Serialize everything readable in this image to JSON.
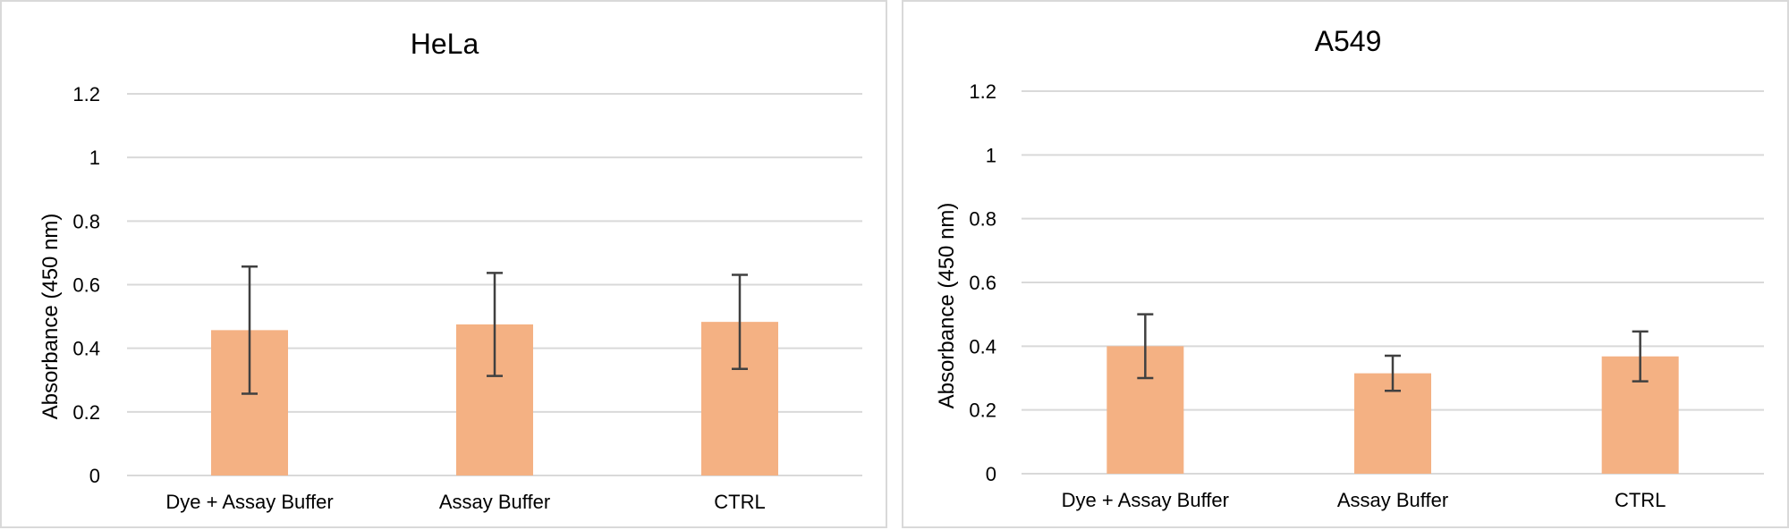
{
  "chart_data": [
    {
      "type": "bar",
      "title": "HeLa",
      "xlabel": "",
      "ylabel": "Absorbance (450 nm)",
      "ylim": [
        0,
        1.2
      ],
      "yticks": [
        "0",
        "0.2",
        "0.4",
        "0.6",
        "0.8",
        "1",
        "1.2"
      ],
      "grid": true,
      "bar_color": "#f4b183",
      "error_bar_color": "#404040",
      "categories": [
        "Dye + Assay Buffer",
        "Assay Buffer",
        "CTRL"
      ],
      "values": [
        0.457,
        0.475,
        0.483
      ],
      "error_low": [
        0.257,
        0.313,
        0.335
      ],
      "error_high": [
        0.657,
        0.637,
        0.631
      ]
    },
    {
      "type": "bar",
      "title": "A549",
      "xlabel": "",
      "ylabel": "Absorbance (450 nm)",
      "ylim": [
        0,
        1.2
      ],
      "yticks": [
        "0",
        "0.2",
        "0.4",
        "0.6",
        "0.8",
        "1",
        "1.2"
      ],
      "grid": true,
      "bar_color": "#f4b183",
      "error_bar_color": "#404040",
      "categories": [
        "Dye + Assay Buffer",
        "Assay Buffer",
        "CTRL"
      ],
      "values": [
        0.4,
        0.315,
        0.368
      ],
      "error_low": [
        0.3,
        0.26,
        0.29
      ],
      "error_high": [
        0.5,
        0.37,
        0.446
      ]
    }
  ]
}
